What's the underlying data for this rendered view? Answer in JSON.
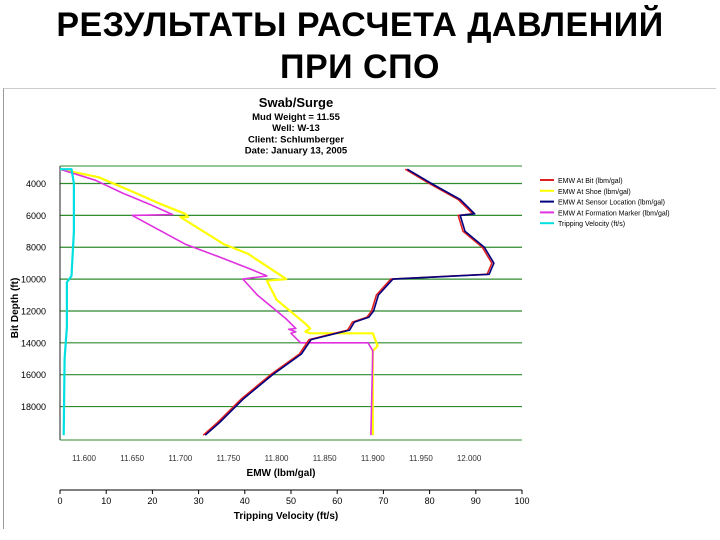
{
  "slide": {
    "title_line1": "РЕЗУЛЬТАТЫ РАСЧЕТА ДАВЛЕНИЙ",
    "title_line2": "ПРИ СПО"
  },
  "chart_data": {
    "type": "line",
    "title": "Swab/Surge",
    "subtitle_lines": [
      "Mud Weight = 11.55",
      "Well: W-13",
      "Client: Schlumberger",
      "Date: January 13, 2005"
    ],
    "xlabel": "EMW (lbm/gal)",
    "x2label": "Tripping Velocity (ft/s)",
    "ylabel": "Bit Depth (ft)",
    "xlim": [
      11.575,
      12.055
    ],
    "x2lim": [
      0,
      100
    ],
    "ylim": [
      2900,
      20100
    ],
    "y_inverted": true,
    "grid": true,
    "legend_position": "right",
    "xticks": [
      {
        "v": 11.6,
        "label": "11.600"
      },
      {
        "v": 11.65,
        "label": "11.650"
      },
      {
        "v": 11.7,
        "label": "11.700"
      },
      {
        "v": 11.75,
        "label": "11.750"
      },
      {
        "v": 11.8,
        "label": "11.800"
      },
      {
        "v": 11.85,
        "label": "11.850"
      },
      {
        "v": 11.9,
        "label": "11.900"
      },
      {
        "v": 11.95,
        "label": "11.950"
      },
      {
        "v": 12.0,
        "label": "12.000"
      }
    ],
    "x2ticks": [
      "0",
      "10",
      "20",
      "30",
      "40",
      "50",
      "60",
      "70",
      "80",
      "90",
      "100"
    ],
    "yticks": [
      "4000",
      "6000",
      "8000",
      "10000",
      "12000",
      "14000",
      "16000",
      "18000"
    ],
    "series": [
      {
        "name": "EMW At Bit (lbm/gal)",
        "color": "#e02020",
        "axis": "emw",
        "points": [
          [
            11.935,
            3100
          ],
          [
            11.96,
            4000
          ],
          [
            11.99,
            5000
          ],
          [
            12.005,
            5900
          ],
          [
            11.99,
            6000
          ],
          [
            11.995,
            7000
          ],
          [
            12.015,
            8000
          ],
          [
            12.025,
            9000
          ],
          [
            12.02,
            9700
          ],
          [
            11.92,
            10000
          ],
          [
            11.905,
            11000
          ],
          [
            11.9,
            12000
          ],
          [
            11.895,
            12400
          ],
          [
            11.88,
            12700
          ],
          [
            11.875,
            13200
          ],
          [
            11.835,
            13800
          ],
          [
            11.825,
            14700
          ],
          [
            11.795,
            16000
          ],
          [
            11.765,
            17500
          ],
          [
            11.74,
            19000
          ],
          [
            11.725,
            19800
          ]
        ]
      },
      {
        "name": "EMW At Shoe (lbm/gal)",
        "color": "#ffff00",
        "axis": "emw",
        "points": [
          [
            11.575,
            3100
          ],
          [
            11.615,
            3600
          ],
          [
            11.65,
            4500
          ],
          [
            11.68,
            5300
          ],
          [
            11.705,
            5900
          ],
          [
            11.708,
            6100
          ],
          [
            11.7,
            6100
          ],
          [
            11.745,
            7800
          ],
          [
            11.77,
            8400
          ],
          [
            11.8,
            9600
          ],
          [
            11.81,
            10000
          ],
          [
            11.79,
            10100
          ],
          [
            11.8,
            11300
          ],
          [
            11.83,
            12800
          ],
          [
            11.835,
            13100
          ],
          [
            11.83,
            13300
          ],
          [
            11.835,
            13400
          ],
          [
            11.9,
            13400
          ],
          [
            11.905,
            14200
          ],
          [
            11.9,
            14500
          ],
          [
            11.9,
            19800
          ]
        ]
      },
      {
        "name": "EMW At Sensor Location (lbm/gal)",
        "color": "#000080",
        "axis": "emw",
        "points": [
          [
            11.935,
            3100
          ],
          [
            11.96,
            4000
          ],
          [
            11.99,
            5000
          ],
          [
            12.005,
            5900
          ],
          [
            11.99,
            6000
          ],
          [
            11.995,
            7000
          ],
          [
            12.015,
            8000
          ],
          [
            12.025,
            9000
          ],
          [
            12.02,
            9700
          ],
          [
            11.92,
            10000
          ],
          [
            11.905,
            11000
          ],
          [
            11.9,
            12000
          ],
          [
            11.895,
            12400
          ],
          [
            11.88,
            12700
          ],
          [
            11.875,
            13200
          ],
          [
            11.835,
            13800
          ],
          [
            11.825,
            14700
          ],
          [
            11.795,
            16000
          ],
          [
            11.765,
            17500
          ],
          [
            11.74,
            19000
          ],
          [
            11.725,
            19800
          ]
        ]
      },
      {
        "name": "EMW At Formation Marker (lbm/gal)",
        "color": "#e030e0",
        "axis": "emw",
        "points": [
          [
            11.575,
            3100
          ],
          [
            11.612,
            3800
          ],
          [
            11.64,
            4600
          ],
          [
            11.668,
            5300
          ],
          [
            11.692,
            5950
          ],
          [
            11.65,
            6000
          ],
          [
            11.705,
            7800
          ],
          [
            11.74,
            8600
          ],
          [
            11.77,
            9300
          ],
          [
            11.79,
            9800
          ],
          [
            11.765,
            10000
          ],
          [
            11.78,
            11000
          ],
          [
            11.81,
            12500
          ],
          [
            11.82,
            13100
          ],
          [
            11.8125,
            13150
          ],
          [
            11.82,
            13300
          ],
          [
            11.815,
            13400
          ],
          [
            11.825,
            14000
          ],
          [
            11.895,
            14000
          ],
          [
            11.9,
            14500
          ],
          [
            11.898,
            19800
          ]
        ]
      },
      {
        "name": "Tripping Velocity (ft/s)",
        "color": "#00e0e0",
        "axis": "velocity",
        "points": [
          [
            0,
            3100
          ],
          [
            2.5,
            3100
          ],
          [
            3,
            4000
          ],
          [
            3,
            7000
          ],
          [
            2.5,
            9800
          ],
          [
            1.5,
            10200
          ],
          [
            1.5,
            13000
          ],
          [
            1,
            15000
          ],
          [
            0.8,
            19800
          ]
        ]
      }
    ]
  }
}
